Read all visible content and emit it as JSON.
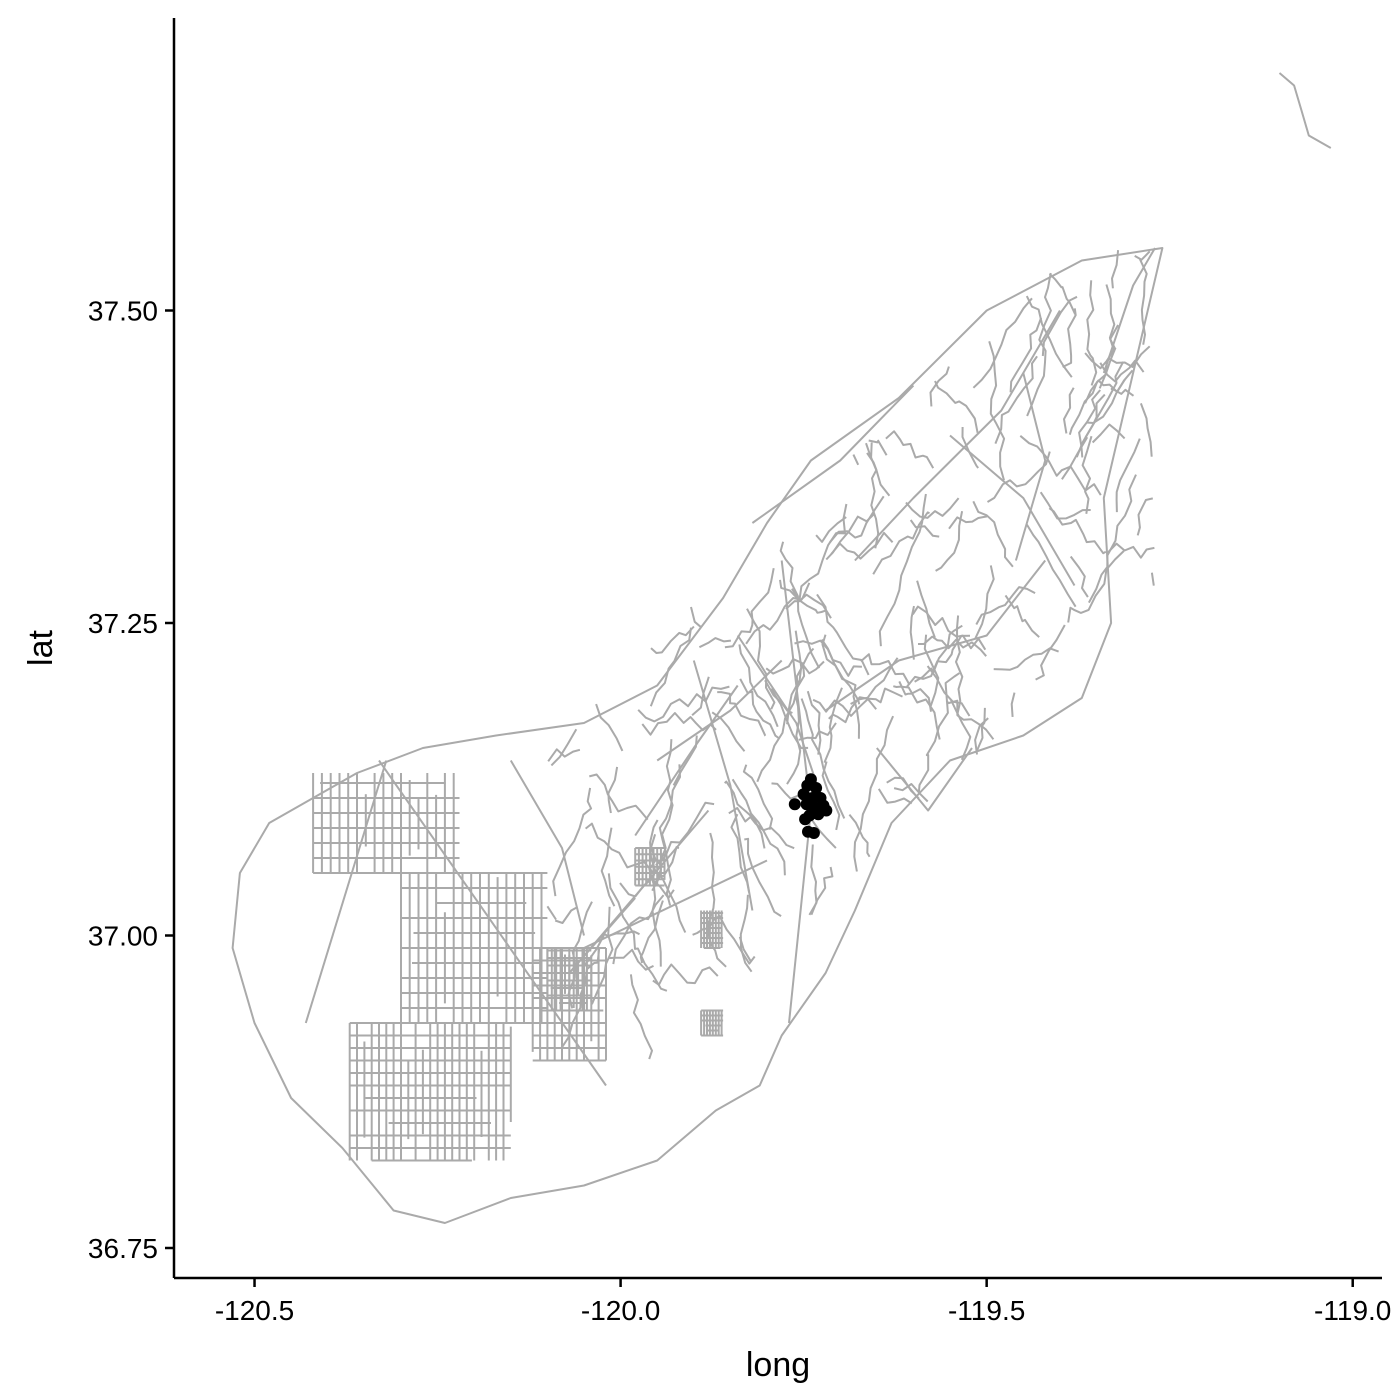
{
  "chart_data": {
    "type": "scatter",
    "subtype": "map-with-road-network",
    "xlabel": "long",
    "ylabel": "lat",
    "xlim": [
      -120.61,
      -118.96
    ],
    "ylim": [
      36.726,
      37.734
    ],
    "x_ticks": [
      {
        "value": -120.5,
        "label": "-120.5"
      },
      {
        "value": -120.0,
        "label": "-120.0"
      },
      {
        "value": -119.5,
        "label": "-119.5"
      },
      {
        "value": -119.0,
        "label": "-119.0"
      }
    ],
    "y_ticks": [
      {
        "value": 36.75,
        "label": "36.75"
      },
      {
        "value": 37.0,
        "label": "37.00"
      },
      {
        "value": 37.25,
        "label": "37.25"
      },
      {
        "value": 37.5,
        "label": "37.50"
      }
    ],
    "grid": false,
    "legend": "none",
    "colors": {
      "roads": "#aaaaaa",
      "points": "#000000",
      "axis": "#000000"
    },
    "points": [
      {
        "long": -119.74,
        "lat": 37.125
      },
      {
        "long": -119.745,
        "lat": 37.12
      },
      {
        "long": -119.733,
        "lat": 37.118
      },
      {
        "long": -119.75,
        "lat": 37.113
      },
      {
        "long": -119.738,
        "lat": 37.11
      },
      {
        "long": -119.727,
        "lat": 37.11
      },
      {
        "long": -119.762,
        "lat": 37.105
      },
      {
        "long": -119.746,
        "lat": 37.105
      },
      {
        "long": -119.735,
        "lat": 37.102
      },
      {
        "long": -119.723,
        "lat": 37.104
      },
      {
        "long": -119.719,
        "lat": 37.1
      },
      {
        "long": -119.742,
        "lat": 37.096
      },
      {
        "long": -119.73,
        "lat": 37.097
      },
      {
        "long": -119.748,
        "lat": 37.093
      },
      {
        "long": -119.744,
        "lat": 37.083
      },
      {
        "long": -119.736,
        "lat": 37.082
      }
    ],
    "road_region_outline": [
      [
        -120.52,
        37.05
      ],
      [
        -120.48,
        37.09
      ],
      [
        -120.36,
        37.13
      ],
      [
        -120.27,
        37.15
      ],
      [
        -120.17,
        37.16
      ],
      [
        -120.05,
        37.17
      ],
      [
        -119.95,
        37.2
      ],
      [
        -119.86,
        37.27
      ],
      [
        -119.8,
        37.33
      ],
      [
        -119.74,
        37.38
      ],
      [
        -119.62,
        37.43
      ],
      [
        -119.5,
        37.5
      ],
      [
        -119.37,
        37.54
      ],
      [
        -119.26,
        37.55
      ],
      [
        -119.3,
        37.45
      ],
      [
        -119.34,
        37.35
      ],
      [
        -119.33,
        37.25
      ],
      [
        -119.37,
        37.19
      ],
      [
        -119.45,
        37.16
      ],
      [
        -119.55,
        37.14
      ],
      [
        -119.63,
        37.09
      ],
      [
        -119.68,
        37.02
      ],
      [
        -119.72,
        36.97
      ],
      [
        -119.78,
        36.92
      ],
      [
        -119.81,
        36.88
      ],
      [
        -119.87,
        36.86
      ],
      [
        -119.95,
        36.82
      ],
      [
        -120.05,
        36.8
      ],
      [
        -120.15,
        36.79
      ],
      [
        -120.24,
        36.77
      ],
      [
        -120.31,
        36.78
      ],
      [
        -120.38,
        36.83
      ],
      [
        -120.45,
        36.87
      ],
      [
        -120.5,
        36.93
      ],
      [
        -120.53,
        36.99
      ]
    ],
    "road_segments": [
      [
        [
          -120.33,
          37.14
        ],
        [
          -120.02,
          36.88
        ]
      ],
      [
        [
          -120.32,
          37.14
        ],
        [
          -120.43,
          36.93
        ]
      ],
      [
        [
          -120.07,
          36.97
        ],
        [
          -119.88,
          37.1
        ]
      ],
      [
        [
          -120.07,
          36.97
        ],
        [
          -119.98,
          37.03
        ]
      ],
      [
        [
          -120.05,
          36.99
        ],
        [
          -119.8,
          37.06
        ]
      ],
      [
        [
          -119.78,
          37.3
        ],
        [
          -119.74,
          37.1
        ],
        [
          -119.77,
          36.93
        ]
      ],
      [
        [
          -119.84,
          37.24
        ],
        [
          -119.76,
          37.17
        ],
        [
          -119.72,
          37.1
        ]
      ],
      [
        [
          -119.9,
          37.22
        ],
        [
          -119.85,
          37.12
        ],
        [
          -119.82,
          37.02
        ]
      ],
      [
        [
          -119.72,
          37.18
        ],
        [
          -119.62,
          37.22
        ],
        [
          -119.5,
          37.24
        ],
        [
          -119.42,
          37.3
        ]
      ],
      [
        [
          -119.68,
          37.3
        ],
        [
          -119.6,
          37.35
        ],
        [
          -119.48,
          37.42
        ],
        [
          -119.4,
          37.5
        ]
      ],
      [
        [
          -119.55,
          37.4
        ],
        [
          -119.45,
          37.35
        ],
        [
          -119.38,
          37.28
        ]
      ],
      [
        [
          -119.82,
          37.33
        ],
        [
          -119.7,
          37.38
        ],
        [
          -119.6,
          37.44
        ]
      ],
      [
        [
          -119.65,
          37.15
        ],
        [
          -119.58,
          37.1
        ],
        [
          -119.52,
          37.15
        ]
      ],
      [
        [
          -119.95,
          37.14
        ],
        [
          -119.85,
          37.18
        ],
        [
          -119.78,
          37.22
        ]
      ],
      [
        [
          -120.15,
          37.14
        ],
        [
          -120.08,
          37.07
        ],
        [
          -120.05,
          37.0
        ]
      ],
      [
        [
          -119.98,
          37.08
        ],
        [
          -119.9,
          37.15
        ],
        [
          -119.84,
          37.2
        ]
      ],
      [
        [
          -119.34,
          37.45
        ],
        [
          -119.3,
          37.52
        ],
        [
          -119.27,
          37.55
        ]
      ],
      [
        [
          -119.45,
          37.45
        ],
        [
          -119.42,
          37.38
        ],
        [
          -119.46,
          37.3
        ]
      ]
    ],
    "grid_street_blocks": [
      {
        "long": [
          -120.42,
          -120.22
        ],
        "lat": [
          37.05,
          37.13
        ],
        "step": 0.012
      },
      {
        "long": [
          -120.3,
          -120.1
        ],
        "lat": [
          36.93,
          37.05
        ],
        "step": 0.012
      },
      {
        "long": [
          -120.37,
          -120.15
        ],
        "lat": [
          36.82,
          36.93
        ],
        "step": 0.01
      },
      {
        "long": [
          -120.12,
          -120.02
        ],
        "lat": [
          36.9,
          36.99
        ],
        "step": 0.01
      },
      {
        "long": [
          -120.1,
          -120.04
        ],
        "lat": [
          36.94,
          36.99
        ],
        "step": 0.006
      },
      {
        "long": [
          -119.98,
          -119.94
        ],
        "lat": [
          37.04,
          37.07
        ],
        "step": 0.005
      },
      {
        "long": [
          -119.89,
          -119.86
        ],
        "lat": [
          36.99,
          37.02
        ],
        "step": 0.004
      },
      {
        "long": [
          -119.89,
          -119.86
        ],
        "lat": [
          36.92,
          36.94
        ],
        "step": 0.004
      }
    ],
    "isolated_road_fragment": [
      [
        -119.1,
        37.69
      ],
      [
        -119.08,
        37.68
      ],
      [
        -119.07,
        37.66
      ],
      [
        -119.06,
        37.64
      ],
      [
        -119.03,
        37.63
      ]
    ]
  }
}
